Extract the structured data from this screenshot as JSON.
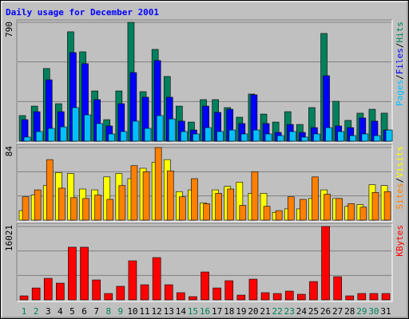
{
  "chart_data": [
    {
      "type": "bar",
      "title": "Daily usage for December 2001",
      "ylim": [
        0,
        790
      ],
      "yticks": [
        790
      ],
      "grid_divisions": 3,
      "separator": "/",
      "series": [
        {
          "name": "Hits",
          "color": "#00805c",
          "values": [
            170,
            233,
            483,
            249,
            727,
            594,
            334,
            143,
            334,
            790,
            329,
            610,
            430,
            233,
            127,
            276,
            276,
            223,
            159,
            313,
            180,
            127,
            196,
            111,
            223,
            716,
            265,
            138,
            186,
            212,
            186
          ]
        },
        {
          "name": "Files",
          "color": "#0000ff",
          "values": [
            143,
            196,
            408,
            196,
            589,
            515,
            276,
            101,
            249,
            456,
            292,
            536,
            292,
            133,
            74,
            233,
            191,
            212,
            117,
            308,
            117,
            58,
            111,
            58,
            90,
            435,
            101,
            90,
            154,
            133,
            74
          ]
        },
        {
          "name": "Pages",
          "color": "#00c0ff",
          "values": [
            27,
            64,
            85,
            95,
            223,
            175,
            117,
            48,
            64,
            133,
            85,
            170,
            148,
            64,
            48,
            90,
            64,
            74,
            48,
            74,
            48,
            37,
            64,
            27,
            48,
            90,
            64,
            37,
            48,
            37,
            74
          ]
        }
      ]
    },
    {
      "type": "bar",
      "ylim": [
        0,
        84
      ],
      "yticks": [
        84
      ],
      "grid_divisions": 3,
      "separator": "/",
      "series": [
        {
          "name": "Visits",
          "color": "#ffff00",
          "values": [
            11,
            29,
            40,
            55,
            54,
            36,
            35,
            50,
            54,
            48,
            60,
            67,
            70,
            33,
            35,
            20,
            35,
            39,
            44,
            31,
            31,
            9,
            13,
            13,
            25,
            35,
            25,
            16,
            18,
            41,
            40
          ]
        },
        {
          "name": "Sites",
          "color": "#ff8000",
          "values": [
            27,
            35,
            70,
            37,
            26,
            25,
            29,
            24,
            40,
            63,
            56,
            84,
            57,
            27,
            48,
            19,
            31,
            36,
            17,
            56,
            16,
            11,
            27,
            24,
            50,
            30,
            25,
            19,
            15,
            32,
            33
          ]
        }
      ]
    },
    {
      "type": "bar",
      "ylim": [
        0,
        16021
      ],
      "yticks": [
        16021
      ],
      "grid_divisions": 3,
      "categories": [
        "1",
        "2",
        "3",
        "4",
        "5",
        "6",
        "7",
        "8",
        "9",
        "10",
        "11",
        "12",
        "13",
        "14",
        "15",
        "16",
        "17",
        "18",
        "19",
        "20",
        "21",
        "22",
        "23",
        "24",
        "25",
        "26",
        "27",
        "28",
        "29",
        "30",
        "31"
      ],
      "category_colors": [
        "#00805c",
        "#00805c",
        "#000000",
        "#000000",
        "#000000",
        "#000000",
        "#000000",
        "#00805c",
        "#00805c",
        "#000000",
        "#000000",
        "#000000",
        "#000000",
        "#000000",
        "#00805c",
        "#00805c",
        "#000000",
        "#000000",
        "#000000",
        "#000000",
        "#000000",
        "#00805c",
        "#00805c",
        "#000000",
        "#000000",
        "#000000",
        "#000000",
        "#000000",
        "#00805c",
        "#00805c",
        "#000000"
      ],
      "series": [
        {
          "name": "KBytes",
          "color": "#ff0000",
          "values": [
            870,
            2600,
            4700,
            3650,
            11500,
            11500,
            4350,
            1390,
            2960,
            8530,
            3300,
            9230,
            3300,
            1570,
            700,
            6090,
            2600,
            4180,
            1040,
            4520,
            1570,
            1390,
            1910,
            1220,
            4000,
            16021,
            5050,
            870,
            1390,
            1390,
            1390
          ]
        }
      ]
    }
  ]
}
